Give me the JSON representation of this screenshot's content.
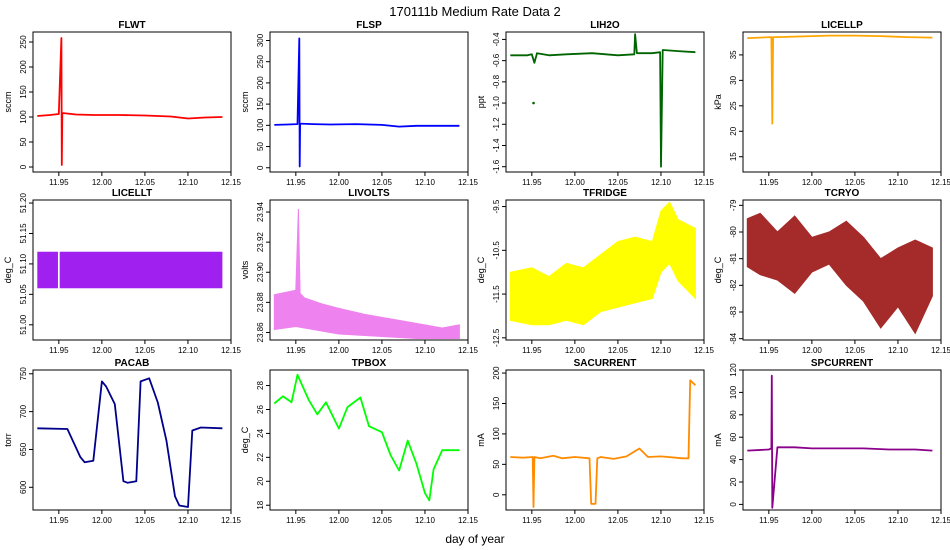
{
  "figure": {
    "title": "170111b   Medium Rate Data 2",
    "xlabel": "day of year"
  },
  "chart_data": [
    {
      "type": "line",
      "title": "FLWT",
      "ylabel": "sccm",
      "color": "#ff0000",
      "xlim": [
        11.92,
        12.15
      ],
      "ylim": [
        -10,
        270
      ],
      "xticks": [
        "11.95",
        "12.00",
        "12.05",
        "12.10",
        "12.15"
      ],
      "yticks": [
        "0",
        "50",
        "100",
        "150",
        "200",
        "250"
      ],
      "series": [
        {
          "x": [
            11.925,
            11.94,
            11.95,
            11.953,
            11.9535,
            11.954,
            11.97,
            11.99,
            12.02,
            12.05,
            12.08,
            12.1,
            12.12,
            12.14
          ],
          "y": [
            102,
            104,
            106,
            258,
            4,
            108,
            105,
            104,
            104,
            103,
            101,
            97,
            99,
            100
          ]
        }
      ]
    },
    {
      "type": "line",
      "title": "FLSP",
      "ylabel": "sccm",
      "color": "#0000ff",
      "xlim": [
        11.92,
        12.15
      ],
      "ylim": [
        -10,
        320
      ],
      "xticks": [
        "11.95",
        "12.00",
        "12.05",
        "12.10",
        "12.15"
      ],
      "yticks": [
        "0",
        "50",
        "100",
        "150",
        "200",
        "250",
        "300"
      ],
      "series": [
        {
          "x": [
            11.925,
            11.94,
            11.952,
            11.954,
            11.9545,
            11.955,
            11.97,
            11.99,
            12.02,
            12.05,
            12.07,
            12.09,
            12.11,
            12.14
          ],
          "y": [
            101,
            102,
            103,
            305,
            3,
            104,
            103,
            102,
            103,
            101,
            97,
            99,
            99,
            99
          ]
        }
      ]
    },
    {
      "type": "line",
      "title": "LIH2O",
      "ylabel": "ppt",
      "color": "#006400",
      "xlim": [
        11.92,
        12.15
      ],
      "ylim": [
        -1.65,
        -0.33
      ],
      "xticks": [
        "11.95",
        "12.00",
        "12.05",
        "12.10",
        "12.15"
      ],
      "yticks": [
        "-1.6",
        "-1.4",
        "-1.2",
        "-1.0",
        "-0.8",
        "-0.6",
        "-0.4"
      ],
      "series": [
        {
          "x": [
            11.925,
            11.945,
            11.95,
            11.953,
            11.956,
            11.97,
            11.99,
            12.02,
            12.05,
            12.069,
            12.07,
            12.072,
            12.09,
            12.099,
            12.1,
            12.102,
            12.12,
            12.14
          ],
          "y": [
            -0.55,
            -0.55,
            -0.54,
            -0.62,
            -0.53,
            -0.55,
            -0.54,
            -0.53,
            -0.55,
            -0.54,
            -0.35,
            -0.53,
            -0.53,
            -0.52,
            -1.6,
            -0.5,
            -0.51,
            -0.52
          ]
        }
      ],
      "points": [
        {
          "x": 11.952,
          "y": -1.0
        }
      ]
    },
    {
      "type": "line",
      "title": "LICELLP",
      "ylabel": "kPa",
      "color": "#ffa500",
      "xlim": [
        11.92,
        12.15
      ],
      "ylim": [
        12,
        39.5
      ],
      "xticks": [
        "11.95",
        "12.00",
        "12.05",
        "12.10",
        "12.15"
      ],
      "yticks": [
        "15",
        "20",
        "25",
        "30",
        "35"
      ],
      "series": [
        {
          "x": [
            11.925,
            11.94,
            11.953,
            11.954,
            11.955,
            11.96,
            11.98,
            12.0,
            12.02,
            12.05,
            12.08,
            12.11,
            12.14
          ],
          "y": [
            38.3,
            38.4,
            38.5,
            21.5,
            38.5,
            38.5,
            38.6,
            38.7,
            38.8,
            38.8,
            38.7,
            38.5,
            38.4
          ]
        }
      ]
    },
    {
      "type": "area",
      "title": "LICELLT",
      "ylabel": "deg_C",
      "color": "#a020f0",
      "xlim": [
        11.92,
        12.15
      ],
      "ylim": [
        50.975,
        51.205
      ],
      "xticks": [
        "11.95",
        "12.00",
        "12.05",
        "12.10",
        "12.15"
      ],
      "yticks": [
        "51.00",
        "51.05",
        "51.10",
        "51.15",
        "51.20"
      ],
      "band": {
        "x_start": 11.925,
        "x_end": 12.14,
        "low": 51.06,
        "high": 51.12,
        "gap_start": 11.949,
        "gap_end": 11.951
      }
    },
    {
      "type": "area",
      "title": "LIVOLTS",
      "ylabel": "volts",
      "color": "#ee82ee",
      "xlim": [
        11.92,
        12.15
      ],
      "ylim": [
        23.855,
        23.948
      ],
      "xticks": [
        "11.95",
        "12.00",
        "12.05",
        "12.10",
        "12.15"
      ],
      "yticks": [
        "23.86",
        "23.88",
        "23.90",
        "23.92",
        "23.94"
      ],
      "series": [
        {
          "name": "upper",
          "x": [
            11.925,
            11.95,
            11.953,
            11.955,
            11.96,
            11.98,
            12.0,
            12.03,
            12.06,
            12.09,
            12.12,
            12.14
          ],
          "y": [
            23.885,
            23.888,
            23.942,
            23.886,
            23.883,
            23.879,
            23.876,
            23.872,
            23.869,
            23.866,
            23.863,
            23.865
          ]
        },
        {
          "name": "lower",
          "x": [
            11.925,
            11.95,
            11.96,
            11.98,
            12.0,
            12.03,
            12.06,
            12.09,
            12.12,
            12.14
          ],
          "y": [
            23.862,
            23.864,
            23.863,
            23.861,
            23.859,
            23.858,
            23.857,
            23.856,
            23.856,
            23.856
          ]
        }
      ]
    },
    {
      "type": "area",
      "title": "TFRIDGE",
      "ylabel": "deg_C",
      "color": "#ffff00",
      "xlim": [
        11.92,
        12.15
      ],
      "ylim": [
        -12.55,
        -9.35
      ],
      "xticks": [
        "11.95",
        "12.00",
        "12.05",
        "12.10",
        "12.15"
      ],
      "yticks": [
        "-12.5",
        "-11.5",
        "-10.5",
        "-9.5"
      ],
      "series": [
        {
          "name": "upper",
          "x": [
            11.925,
            11.95,
            11.97,
            11.99,
            12.01,
            12.03,
            12.05,
            12.07,
            12.09,
            12.1,
            12.11,
            12.12,
            12.14
          ],
          "y": [
            -11.0,
            -10.9,
            -11.1,
            -10.8,
            -10.9,
            -10.6,
            -10.3,
            -10.2,
            -10.3,
            -9.6,
            -9.4,
            -9.8,
            -10.0
          ]
        },
        {
          "name": "lower",
          "x": [
            11.925,
            11.95,
            11.97,
            11.99,
            12.01,
            12.03,
            12.05,
            12.07,
            12.09,
            12.1,
            12.11,
            12.12,
            12.14
          ],
          "y": [
            -12.1,
            -12.2,
            -12.2,
            -12.1,
            -12.2,
            -11.9,
            -11.8,
            -11.7,
            -11.6,
            -11.0,
            -10.8,
            -11.2,
            -11.6
          ]
        }
      ]
    },
    {
      "type": "area",
      "title": "TCRYO",
      "ylabel": "deg_C",
      "color": "#a52a2a",
      "xlim": [
        11.92,
        12.15
      ],
      "ylim": [
        -84.05,
        -78.8
      ],
      "xticks": [
        "11.95",
        "12.00",
        "12.05",
        "12.10",
        "12.15"
      ],
      "yticks": [
        "-84",
        "-83",
        "-82",
        "-81",
        "-80",
        "-79"
      ],
      "series": [
        {
          "name": "upper",
          "x": [
            11.925,
            11.94,
            11.96,
            11.98,
            12.0,
            12.02,
            12.04,
            12.06,
            12.08,
            12.1,
            12.12,
            12.14
          ],
          "y": [
            -79.5,
            -79.3,
            -80.0,
            -79.4,
            -80.2,
            -80.0,
            -79.6,
            -80.2,
            -81.0,
            -80.6,
            -80.3,
            -80.6
          ]
        },
        {
          "name": "lower",
          "x": [
            11.925,
            11.94,
            11.96,
            11.98,
            12.0,
            12.02,
            12.04,
            12.06,
            12.08,
            12.1,
            12.12,
            12.14
          ],
          "y": [
            -81.3,
            -81.6,
            -81.8,
            -82.3,
            -81.5,
            -81.2,
            -82.0,
            -82.6,
            -83.6,
            -82.8,
            -83.8,
            -82.4
          ]
        }
      ]
    },
    {
      "type": "line",
      "title": "PACAB",
      "ylabel": "torr",
      "color": "#00008b",
      "xlim": [
        11.92,
        12.15
      ],
      "ylim": [
        570,
        755
      ],
      "xticks": [
        "11.95",
        "12.00",
        "12.05",
        "12.10",
        "12.15"
      ],
      "yticks": [
        "600",
        "650",
        "700",
        "750"
      ],
      "series": [
        {
          "x": [
            11.925,
            11.96,
            11.975,
            11.98,
            11.99,
            12.0,
            12.005,
            12.015,
            12.025,
            12.03,
            12.04,
            12.045,
            12.055,
            12.065,
            12.075,
            12.085,
            12.09,
            12.1,
            12.105,
            12.115,
            12.14
          ],
          "y": [
            678,
            677,
            640,
            633,
            635,
            740,
            733,
            710,
            608,
            606,
            608,
            740,
            744,
            712,
            662,
            588,
            576,
            574,
            675,
            679,
            678
          ]
        }
      ]
    },
    {
      "type": "line",
      "title": "TPBOX",
      "ylabel": "deg_C",
      "color": "#00ff00",
      "xlim": [
        11.92,
        12.15
      ],
      "ylim": [
        17.6,
        29.3
      ],
      "xticks": [
        "11.95",
        "12.00",
        "12.05",
        "12.10",
        "12.15"
      ],
      "yticks": [
        "18",
        "20",
        "22",
        "24",
        "26",
        "28"
      ],
      "series": [
        {
          "x": [
            11.925,
            11.935,
            11.945,
            11.952,
            11.965,
            11.975,
            11.985,
            12.0,
            12.01,
            12.025,
            12.035,
            12.05,
            12.06,
            12.07,
            12.08,
            12.09,
            12.1,
            12.105,
            12.11,
            12.12,
            12.14
          ],
          "y": [
            26.5,
            27.1,
            26.6,
            28.9,
            26.8,
            25.6,
            26.6,
            24.4,
            26.2,
            27.0,
            24.6,
            24.1,
            22.2,
            20.9,
            23.4,
            21.5,
            19.0,
            18.4,
            21.0,
            22.6,
            22.6
          ]
        }
      ]
    },
    {
      "type": "line",
      "title": "SACURRENT",
      "ylabel": "mA",
      "color": "#ff8c00",
      "xlim": [
        11.92,
        12.15
      ],
      "ylim": [
        -25,
        205
      ],
      "xticks": [
        "11.95",
        "12.00",
        "12.05",
        "12.10",
        "12.15"
      ],
      "yticks": [
        "0",
        "50",
        "100",
        "150",
        "200"
      ],
      "series": [
        {
          "x": [
            11.925,
            11.94,
            11.951,
            11.952,
            11.953,
            11.96,
            11.975,
            11.985,
            12.0,
            12.017,
            12.019,
            12.024,
            12.026,
            12.03,
            12.045,
            12.06,
            12.075,
            12.085,
            12.1,
            12.125,
            12.132,
            12.134,
            12.14
          ],
          "y": [
            62,
            61,
            62,
            -20,
            62,
            60,
            64,
            60,
            62,
            60,
            -15,
            -15,
            60,
            62,
            59,
            63,
            76,
            62,
            63,
            60,
            60,
            188,
            180
          ]
        }
      ]
    },
    {
      "type": "line",
      "title": "SPCURRENT",
      "ylabel": "mA",
      "color": "#8b008b",
      "xlim": [
        11.92,
        12.15
      ],
      "ylim": [
        -5,
        120
      ],
      "xticks": [
        "11.95",
        "12.00",
        "12.05",
        "12.10",
        "12.15"
      ],
      "yticks": [
        "0",
        "20",
        "40",
        "60",
        "80",
        "100",
        "120"
      ],
      "series": [
        {
          "x": [
            11.925,
            11.95,
            11.953,
            11.9535,
            11.954,
            11.96,
            11.98,
            12.0,
            12.03,
            12.06,
            12.09,
            12.12,
            12.14
          ],
          "y": [
            48,
            49,
            50,
            115,
            -3,
            51,
            51,
            50,
            50,
            50,
            49,
            49,
            48
          ]
        }
      ]
    }
  ]
}
